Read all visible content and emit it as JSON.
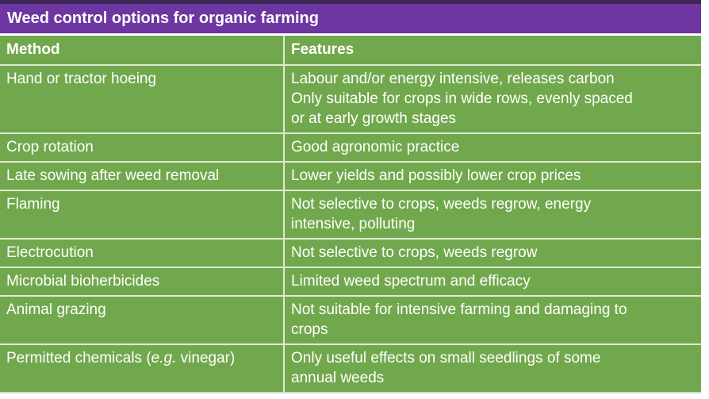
{
  "title": "Weed control options for organic farming",
  "colors": {
    "title_bar_purple": "#6d36a0",
    "title_bar_top_border": "#3e2757",
    "table_green": "#72a84d",
    "divider_light_green": "#ddebd1",
    "text_white": "#ffffff"
  },
  "table": {
    "headers": {
      "method": "Method",
      "features": "Features"
    },
    "rows": [
      {
        "method": "Hand or tractor hoeing",
        "features": "Labour and/or energy intensive, releases carbon\nOnly suitable for crops in wide rows, evenly spaced\nor at early growth stages"
      },
      {
        "method": "Crop rotation",
        "features": "Good agronomic practice"
      },
      {
        "method": "Late sowing after weed removal",
        "features": "Lower yields and possibly lower crop prices"
      },
      {
        "method": "Flaming",
        "features": "Not selective to crops, weeds regrow, energy\nintensive, polluting"
      },
      {
        "method": "Electrocution",
        "features": "Not selective to crops, weeds regrow"
      },
      {
        "method": "Microbial bioherbicides",
        "features": "Limited weed spectrum and efficacy"
      },
      {
        "method": "Animal grazing",
        "features": "Not suitable for intensive farming and damaging to\ncrops"
      },
      {
        "method_pre": "Permitted chemicals (",
        "method_italic": "e.g.",
        "method_post": " vinegar)",
        "features": "Only useful effects on small seedlings of some\nannual weeds"
      }
    ]
  }
}
